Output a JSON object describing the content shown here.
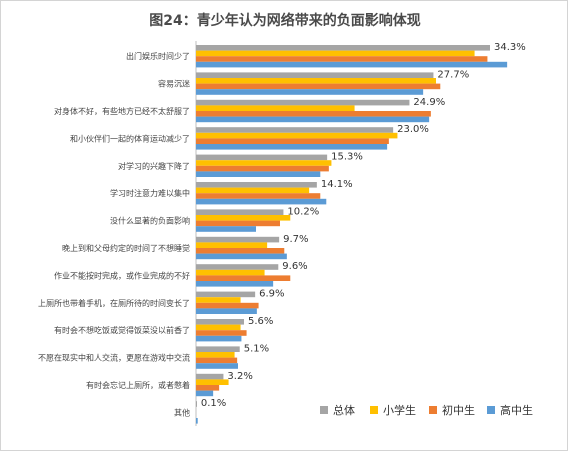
{
  "chart_data": {
    "type": "bar",
    "orientation": "horizontal",
    "title": "图24：青少年认为网络带来的负面影响体现",
    "categories": [
      "出门娱乐时间少了",
      "容易沉迷",
      "对身体不好，有些地方已经不太舒服了",
      "和小伙伴们一起的体育运动减少了",
      "对学习的兴趣下降了",
      "学习时注意力难以集中",
      "没什么显著的负面影响",
      "晚上到和父母约定的时间了不想睡觉",
      "作业不能按时完成，或作业完成的不好",
      "上厕所也带着手机，在厕所待的时间变长了",
      "有时会不想吃饭或觉得饭菜没以前香了",
      "不愿在现实中和人交流，更愿在游戏中交流",
      "有时会忘记上厕所，或者憋着",
      "其他"
    ],
    "series": [
      {
        "name": "总体",
        "color": "#a5a5a5",
        "values": [
          34.3,
          27.7,
          24.9,
          23.0,
          15.3,
          14.1,
          10.2,
          9.7,
          9.6,
          6.9,
          5.6,
          5.1,
          3.2,
          0.1
        ]
      },
      {
        "name": "小学生",
        "color": "#ffc000",
        "values": [
          32.5,
          28.0,
          18.5,
          23.5,
          15.8,
          13.2,
          11.0,
          8.3,
          8.0,
          5.2,
          5.2,
          4.5,
          3.8,
          0.0
        ]
      },
      {
        "name": "初中生",
        "color": "#ed7d31",
        "values": [
          34.0,
          28.5,
          27.4,
          22.5,
          15.5,
          14.5,
          9.8,
          10.3,
          11.0,
          7.3,
          5.9,
          4.8,
          2.7,
          0.0
        ]
      },
      {
        "name": "高中生",
        "color": "#5b9bd5",
        "values": [
          36.3,
          26.5,
          27.2,
          22.3,
          14.5,
          15.2,
          7.0,
          10.6,
          9.0,
          7.1,
          5.3,
          4.9,
          2.0,
          0.2
        ]
      }
    ],
    "data_labels": [
      "34.3%",
      "27.7%",
      "24.9%",
      "23.0%",
      "15.3%",
      "14.1%",
      "10.2%",
      "9.7%",
      "9.6%",
      "6.9%",
      "5.6%",
      "5.1%",
      "3.2%",
      "0.1%"
    ],
    "xlim": [
      0,
      40
    ],
    "grid": false,
    "legend": "bottom-right"
  }
}
